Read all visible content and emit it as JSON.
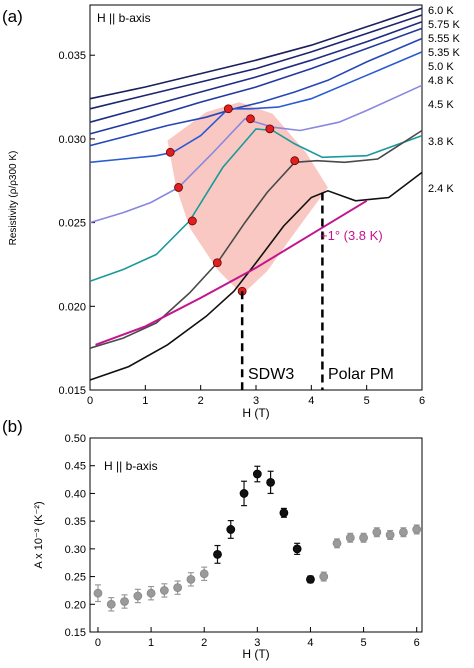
{
  "panels": [
    {
      "id": "a",
      "panel_label": "(a)",
      "chart_data": {
        "type": "line",
        "title": "",
        "annotation": "H || b-axis",
        "xlabel": "H (T)",
        "ylabel": "Resistivity (ρ/ρ300 K)",
        "xlim": [
          0,
          6
        ],
        "ylim": [
          0.015,
          0.038
        ],
        "xticks": [
          "0",
          "1",
          "2",
          "3",
          "4",
          "5",
          "6"
        ],
        "yticks": [
          "0.015",
          "0.020",
          "0.025",
          "0.030",
          "0.035"
        ],
        "series": [
          {
            "name": "6.0 K",
            "color": "#1a1f5e",
            "x": [
              0,
              1,
              2,
              3,
              4,
              5,
              6
            ],
            "y": [
              0.0324,
              0.0331,
              0.0339,
              0.0347,
              0.0356,
              0.0367,
              0.0378
            ]
          },
          {
            "name": "5.75 K",
            "color": "#1c2470",
            "x": [
              0,
              1,
              2,
              3,
              4,
              5,
              6
            ],
            "y": [
              0.0318,
              0.0326,
              0.0334,
              0.0342,
              0.0352,
              0.0363,
              0.0374
            ]
          },
          {
            "name": "5.55 K",
            "color": "#1e2c86",
            "x": [
              0,
              1,
              2,
              3,
              4,
              5,
              6
            ],
            "y": [
              0.031,
              0.0319,
              0.0328,
              0.0337,
              0.0347,
              0.0358,
              0.037
            ]
          },
          {
            "name": "5.35 K",
            "color": "#2238a0",
            "x": [
              0,
              1,
              2,
              3,
              4,
              5,
              6
            ],
            "y": [
              0.0303,
              0.0312,
              0.0322,
              0.0331,
              0.0342,
              0.0354,
              0.0366
            ]
          },
          {
            "name": "5.0 K",
            "color": "#2547b8",
            "x": [
              0,
              0.7,
              1.4,
              2.1,
              2.6,
              3.1,
              3.7,
              4.3,
              5,
              6
            ],
            "y": [
              0.0296,
              0.0302,
              0.0308,
              0.0313,
              0.0318,
              0.0322,
              0.0328,
              0.0335,
              0.0346,
              0.036
            ]
          },
          {
            "name": "4.8 K",
            "color": "#2a5bd4",
            "x": [
              0,
              0.6,
              1.2,
              1.5,
              2.0,
              2.5,
              2.9,
              3.4,
              4,
              5,
              6
            ],
            "y": [
              0.0286,
              0.0288,
              0.029,
              0.0292,
              0.0302,
              0.0318,
              0.0318,
              0.0319,
              0.0324,
              0.0338,
              0.0352
            ]
          },
          {
            "name": "4.5 K",
            "color": "#8888e0",
            "x": [
              0,
              0.6,
              1.1,
              1.6,
              2.2,
              2.8,
              3.3,
              3.8,
              4.5,
              5,
              6
            ],
            "y": [
              0.025,
              0.0256,
              0.0262,
              0.0271,
              0.0291,
              0.0312,
              0.0307,
              0.0305,
              0.031,
              0.0317,
              0.0332
            ]
          },
          {
            "name": "3.8 K",
            "color": "#1a9a9a",
            "x": [
              0,
              0.6,
              1.2,
              1.8,
              2.4,
              3.0,
              3.3,
              3.7,
              4.2,
              5,
              6
            ],
            "y": [
              0.0215,
              0.0222,
              0.0231,
              0.0251,
              0.0283,
              0.0306,
              0.0305,
              0.0297,
              0.0289,
              0.029,
              0.0302
            ]
          },
          {
            "name": "2.4 K",
            "color": "#4a4a4a",
            "x": [
              0,
              0.6,
              1.2,
              1.8,
              2.3,
              2.8,
              3.2,
              3.7,
              4.1,
              4.6,
              5.2,
              6
            ],
            "y": [
              0.0175,
              0.0181,
              0.019,
              0.0208,
              0.0226,
              0.025,
              0.0268,
              0.0286,
              0.0287,
              0.0286,
              0.0288,
              0.0305
            ]
          },
          {
            "name": "2.4 K",
            "color": "#111111",
            "x": [
              0,
              0.7,
              1.4,
              2.1,
              2.6,
              3.0,
              3.5,
              4.0,
              4.3,
              4.8,
              5.4,
              6
            ],
            "y": [
              0.0156,
              0.0164,
              0.0177,
              0.0194,
              0.0209,
              0.0226,
              0.0248,
              0.0265,
              0.0269,
              0.0263,
              0.0265,
              0.028
            ]
          },
          {
            "name": "+1° (3.8 K)",
            "color": "#c2158f",
            "x": [
              0.1,
              1,
              2,
              3,
              4,
              5
            ],
            "y": [
              0.0177,
              0.0188,
              0.0205,
              0.0223,
              0.0243,
              0.0263
            ]
          }
        ],
        "temperature_labels": [
          "6.0 K",
          "5.75 K",
          "5.55 K",
          "5.35 K",
          "5.0 K",
          "4.8 K",
          "4.5 K",
          "3.8 K",
          "2.4 K"
        ],
        "curve_annotation": "+1° (3.8 K)",
        "transition_points": [
          {
            "x": 2.5,
            "y": 0.0318
          },
          {
            "x": 2.9,
            "y": 0.0312
          },
          {
            "x": 1.45,
            "y": 0.0292
          },
          {
            "x": 3.25,
            "y": 0.0306
          },
          {
            "x": 1.6,
            "y": 0.0271
          },
          {
            "x": 3.7,
            "y": 0.0287
          },
          {
            "x": 1.85,
            "y": 0.0251
          },
          {
            "x": 2.3,
            "y": 0.0226
          },
          {
            "x": 2.75,
            "y": 0.0209
          }
        ],
        "shaded_region": "SDW3",
        "phase_boundaries": [
          2.75,
          4.2
        ],
        "phase_labels": [
          "SDW3",
          "Polar PM"
        ]
      }
    },
    {
      "id": "b",
      "panel_label": "(b)",
      "chart_data": {
        "type": "scatter",
        "title": "",
        "annotation": "H || b-axis",
        "xlabel": "H (T)",
        "ylabel": "A x 10⁻³ (K⁻²)",
        "xlim": [
          -0.15,
          6.1
        ],
        "ylim": [
          0.15,
          0.5
        ],
        "xticks": [
          "0",
          "1",
          "2",
          "3",
          "4",
          "5",
          "6"
        ],
        "yticks": [
          "0.15",
          "0.20",
          "0.25",
          "0.30",
          "0.35",
          "0.40",
          "0.45",
          "0.50"
        ],
        "series": [
          {
            "name": "gray",
            "color": "#9a9a9a",
            "x": [
              0,
              0.25,
              0.5,
              0.75,
              1,
              1.25,
              1.5,
              1.75,
              2,
              4.25,
              4.5,
              4.75,
              5,
              5.25,
              5.5,
              5.75,
              6
            ],
            "y": [
              0.22,
              0.2,
              0.205,
              0.215,
              0.22,
              0.225,
              0.23,
              0.245,
              0.255,
              0.25,
              0.31,
              0.32,
              0.32,
              0.33,
              0.325,
              0.33,
              0.335
            ],
            "err": [
              0.015,
              0.012,
              0.012,
              0.012,
              0.012,
              0.012,
              0.012,
              0.012,
              0.012,
              0.008,
              0.008,
              0.008,
              0.008,
              0.008,
              0.008,
              0.008,
              0.008
            ]
          },
          {
            "name": "black",
            "color": "#111111",
            "x": [
              2.25,
              2.5,
              2.75,
              3,
              3.25,
              3.5,
              3.75,
              4
            ],
            "y": [
              0.29,
              0.335,
              0.4,
              0.435,
              0.42,
              0.365,
              0.3,
              0.245
            ],
            "err": [
              0.016,
              0.016,
              0.022,
              0.014,
              0.02,
              0.008,
              0.01,
              0.006
            ]
          }
        ]
      }
    }
  ]
}
